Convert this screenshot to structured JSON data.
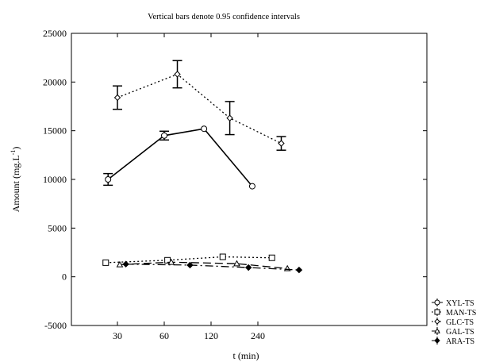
{
  "chart_data": {
    "type": "line",
    "title": "Vertical bars denote 0.95 confidence intervals",
    "xlabel": "t (min)",
    "ylabel_main": "Amount (mg.L",
    "ylabel_sup": "-1",
    "ylabel_end": ")",
    "x_ticks": [
      "30",
      "60",
      "120",
      "240"
    ],
    "y_ticks": [
      25000,
      20000,
      15000,
      10000,
      5000,
      0,
      -5000
    ],
    "ylim": [
      -5000,
      25000
    ],
    "grid": false,
    "legend_position": "outside-bottom-right",
    "series": [
      {
        "name": "XYL-TS",
        "style": "solid",
        "marker": "circle",
        "points": [
          {
            "x": 0.8,
            "y": 10000,
            "err": 600
          },
          {
            "x": 2.0,
            "y": 14500,
            "err": 450
          },
          {
            "x": 2.85,
            "y": 15200,
            "err": 0
          },
          {
            "x": 3.88,
            "y": 9300,
            "err": 0
          }
        ]
      },
      {
        "name": "MAN-TS",
        "style": "dotted",
        "marker": "square",
        "points": [
          {
            "x": 0.75,
            "y": 1450
          },
          {
            "x": 2.07,
            "y": 1700
          },
          {
            "x": 3.25,
            "y": 2050
          },
          {
            "x": 4.3,
            "y": 1950
          }
        ]
      },
      {
        "name": "GLC-TS",
        "style": "dotted",
        "marker": "diamond",
        "points": [
          {
            "x": 1.0,
            "y": 18400,
            "err": 1200
          },
          {
            "x": 2.28,
            "y": 20800,
            "err": 1400
          },
          {
            "x": 3.4,
            "y": 16300,
            "err": 1700
          },
          {
            "x": 4.5,
            "y": 13700,
            "err": 700
          }
        ]
      },
      {
        "name": "GAL-TS",
        "style": "dashed",
        "marker": "triangle",
        "points": [
          {
            "x": 1.05,
            "y": 1250
          },
          {
            "x": 2.15,
            "y": 1500
          },
          {
            "x": 3.55,
            "y": 1350
          },
          {
            "x": 4.63,
            "y": 850
          }
        ]
      },
      {
        "name": "ARA-TS",
        "style": "dashdot",
        "marker": "filled-diamond",
        "points": [
          {
            "x": 1.18,
            "y": 1300
          },
          {
            "x": 2.55,
            "y": 1200
          },
          {
            "x": 3.8,
            "y": 950
          },
          {
            "x": 4.88,
            "y": 700
          }
        ]
      }
    ]
  }
}
